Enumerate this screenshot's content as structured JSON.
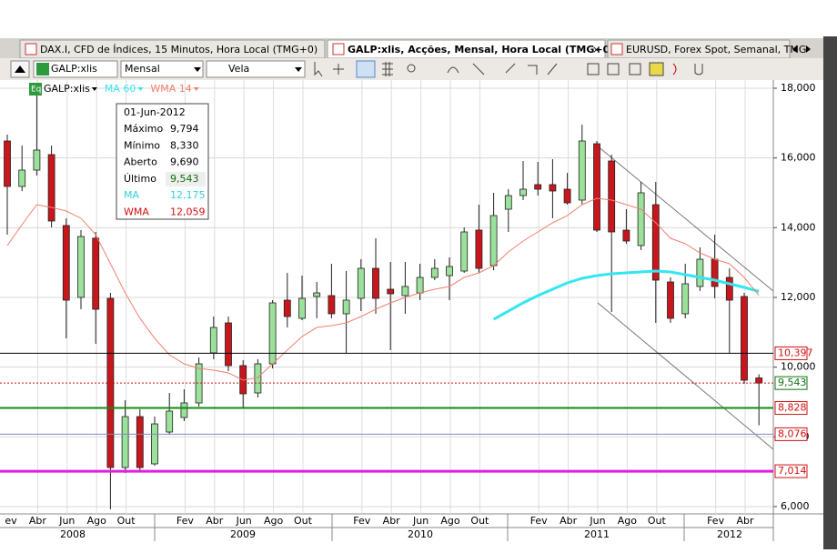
{
  "ui": {
    "tabs": [
      "DAX.I, CFD de Índices, 15 Minutos, Hora Local (TMG+0)",
      "GALP:xlis, Acções, Mensal, Hora Local (TMG+0)",
      "EURUSD, Forex Spot, Semanal, TMG-"
    ],
    "toolbar": {
      "symbol": "GALP:xlis",
      "period": "Mensal",
      "style": "Vela"
    },
    "eq": "Eq",
    "tooltip": {
      "date": "01-Jun-2012",
      "rows": [
        [
          "Máximo",
          "9,794"
        ],
        [
          "Mínimo",
          "8,330"
        ],
        [
          "Aberto",
          "9,690"
        ],
        [
          "Último",
          "9,543"
        ],
        [
          "MA",
          "12,175"
        ],
        [
          "WMA",
          "12,059"
        ]
      ]
    }
  },
  "chart_data": {
    "type": "candlestick",
    "categories": [
      "ev",
      null,
      "Abr",
      null,
      "Jun",
      null,
      "Ago",
      null,
      "Out",
      null,
      null,
      null,
      "Fev",
      null,
      "Abr",
      null,
      "Jun",
      null,
      "Ago",
      null,
      "Out",
      null,
      null,
      null,
      "Fev",
      null,
      "Abr",
      null,
      "Jun",
      null,
      "Ago",
      null,
      "Out",
      null,
      null,
      null,
      "Fev",
      null,
      "Abr",
      null,
      "Jun",
      null,
      "Ago",
      null,
      "Out",
      null,
      null,
      null,
      "Fev",
      null,
      "Abr",
      null
    ],
    "x_groups": [
      "2008",
      "2009",
      "2010",
      "2011",
      "2012"
    ],
    "series": [
      {
        "name": "GALP:xlis",
        "up_color": "#9be09b",
        "down_color": "#c8161d",
        "open": [
          16487,
          15183,
          15652,
          16096,
          14061,
          12000,
          13700,
          11973,
          7120,
          8581,
          7225,
          8138,
          8555,
          8973,
          10408,
          11269,
          10043,
          9260,
          10095,
          11921,
          11400,
          12026,
          12052,
          11530,
          11973,
          12834,
          12234,
          12052,
          12130,
          12573,
          12625,
          12756,
          13930,
          12912,
          14530,
          14921,
          15235,
          15235,
          15104,
          14791,
          16408,
          15913,
          13930,
          13487,
          14660,
          12443,
          11530,
          12313,
          13095,
          12573,
          12026,
          9690
        ],
        "high": [
          16669,
          16356,
          17920,
          16356,
          14270,
          13930,
          13878,
          12130,
          9051,
          8790,
          8581,
          9260,
          9364,
          10277,
          11451,
          11451,
          10199,
          10225,
          11921,
          12704,
          12625,
          12443,
          12965,
          12756,
          13095,
          13695,
          13017,
          13017,
          12965,
          13095,
          13147,
          14009,
          14660,
          15000,
          15104,
          15913,
          15887,
          15965,
          15574,
          16956,
          16487,
          16095,
          14530,
          15313,
          15313,
          12573,
          12965,
          13435,
          13800,
          12834,
          12130,
          9794
        ],
        "low": [
          13800,
          15052,
          15495,
          14009,
          10825,
          11660,
          10669,
          5920,
          6964,
          7016,
          7172,
          8060,
          8451,
          8868,
          10225,
          9886,
          8842,
          9130,
          9964,
          11138,
          11347,
          11400,
          11400,
          10408,
          11608,
          11530,
          10486,
          11530,
          11921,
          12495,
          11921,
          12704,
          12704,
          12782,
          13878,
          14791,
          14921,
          14270,
          14661,
          14661,
          13878,
          11582,
          13539,
          13356,
          11269,
          11269,
          11400,
          12182,
          11973,
          10408,
          9521,
          8330
        ],
        "close": [
          15183,
          15652,
          16226,
          14191,
          11921,
          13747,
          11660,
          7120,
          8581,
          7120,
          8372,
          8738,
          8973,
          10095,
          11138,
          10043,
          9234,
          10095,
          11843,
          11451,
          11973,
          12130,
          11530,
          11921,
          12834,
          11973,
          12104,
          12313,
          12573,
          12834,
          12886,
          13878,
          12834,
          14347,
          14921,
          15104,
          15104,
          15052,
          14713,
          16487,
          13930,
          13878,
          13617,
          15000,
          12495,
          11400,
          12391,
          13095,
          12313,
          11921,
          9625,
          9543
        ]
      },
      {
        "name": "MA 60",
        "kind": "line",
        "color": "#33e6f0",
        "values": [
          null,
          null,
          null,
          null,
          null,
          null,
          null,
          null,
          null,
          null,
          null,
          null,
          null,
          null,
          null,
          null,
          null,
          null,
          null,
          null,
          null,
          null,
          null,
          null,
          null,
          null,
          null,
          null,
          null,
          null,
          null,
          null,
          null,
          11373,
          11608,
          11843,
          12052,
          12234,
          12417,
          12547,
          12625,
          12678,
          12704,
          12730,
          12756,
          12730,
          12652,
          12573,
          12495,
          12391,
          12286,
          12175
        ]
      },
      {
        "name": "WMA 14",
        "kind": "line",
        "color": "#f08070",
        "values": [
          13487,
          14087,
          14661,
          14583,
          14478,
          14270,
          13800,
          12965,
          12130,
          11400,
          10825,
          10356,
          10095,
          9964,
          9912,
          9834,
          9625,
          9703,
          10095,
          10486,
          10877,
          11138,
          11190,
          11269,
          11451,
          11660,
          11843,
          12000,
          12130,
          12234,
          12313,
          12573,
          12704,
          12912,
          13304,
          13617,
          13878,
          14139,
          14347,
          14661,
          14843,
          14791,
          14661,
          14530,
          14139,
          13695,
          13539,
          13278,
          13095,
          12965,
          12573,
          12059
        ]
      }
    ],
    "levels": [
      {
        "value": 10397,
        "label": "10,397",
        "color": "#000000",
        "text_color": "#d01010"
      },
      {
        "value": 9543,
        "label": "9,543",
        "color": "#d01010",
        "text_color": "#107010"
      },
      {
        "value": 8828,
        "label": "8,828",
        "color": "#138a13",
        "text_color": "#d01010"
      },
      {
        "value": 8076,
        "label": "8,076",
        "color": "#7d8cc0",
        "text_color": "#d01010"
      },
      {
        "value": 7014,
        "label": "7,014",
        "color": "#e020e0",
        "text_color": "#d01010"
      }
    ],
    "ylim": [
      5790,
      18235
    ],
    "yticks": [
      {
        "value": 6000,
        "label": "6,000"
      },
      {
        "value": 8000,
        "label": "8,000"
      },
      {
        "value": 10000,
        "label": "10,000"
      },
      {
        "value": 12000,
        "label": "12,000"
      },
      {
        "value": 14000,
        "label": "14,000"
      },
      {
        "value": 16000,
        "label": "16,000"
      },
      {
        "value": 18000,
        "label": "18,000"
      }
    ],
    "grid": true
  }
}
